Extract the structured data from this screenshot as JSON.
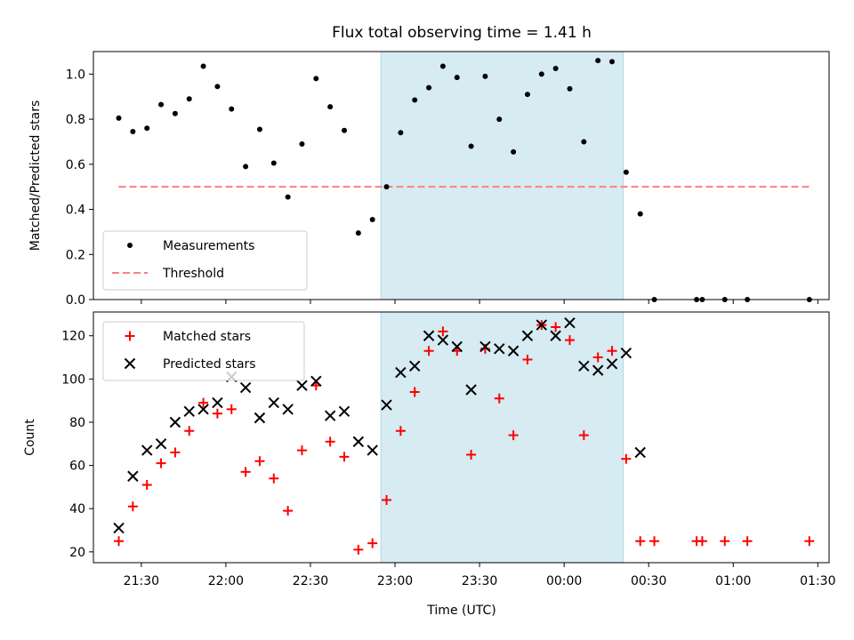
{
  "title": "Flux total observing time = 1.41 h",
  "colors": {
    "measurement": "#000000",
    "threshold": "#ff7f7f",
    "matched": "#ff0000",
    "predicted": "#000000",
    "shade": "#add8e6"
  },
  "chart_data": [
    {
      "type": "scatter",
      "ylabel": "Matched/Predicted stars",
      "ylim": [
        0,
        1.1
      ],
      "yticks": [
        "0.0",
        "0.2",
        "0.4",
        "0.6",
        "0.8",
        "1.0"
      ],
      "xlim": [
        "21:13",
        "01:34"
      ],
      "legend": {
        "placement": "lower-left",
        "entries": [
          "Measurements",
          "Threshold"
        ]
      },
      "shaded_region": [
        "22:55",
        "00:21"
      ],
      "threshold": {
        "name": "Threshold",
        "y": 0.5,
        "x_start": "21:22",
        "x_end": "01:28"
      },
      "series": [
        {
          "name": "Measurements",
          "marker": "dot",
          "points": [
            [
              "21:22",
              0.805
            ],
            [
              "21:27",
              0.745
            ],
            [
              "21:32",
              0.76
            ],
            [
              "21:37",
              0.865
            ],
            [
              "21:42",
              0.825
            ],
            [
              "21:47",
              0.89
            ],
            [
              "21:52",
              1.035
            ],
            [
              "21:57",
              0.945
            ],
            [
              "22:02",
              0.845
            ],
            [
              "22:07",
              0.59
            ],
            [
              "22:12",
              0.755
            ],
            [
              "22:17",
              0.605
            ],
            [
              "22:22",
              0.455
            ],
            [
              "22:27",
              0.69
            ],
            [
              "22:32",
              0.98
            ],
            [
              "22:37",
              0.855
            ],
            [
              "22:42",
              0.75
            ],
            [
              "22:47",
              0.295
            ],
            [
              "22:52",
              0.355
            ],
            [
              "22:57",
              0.5
            ],
            [
              "23:02",
              0.74
            ],
            [
              "23:07",
              0.885
            ],
            [
              "23:12",
              0.94
            ],
            [
              "23:17",
              1.035
            ],
            [
              "23:22",
              0.985
            ],
            [
              "23:27",
              0.68
            ],
            [
              "23:32",
              0.99
            ],
            [
              "23:37",
              0.8
            ],
            [
              "23:42",
              0.655
            ],
            [
              "23:47",
              0.91
            ],
            [
              "23:52",
              1.0
            ],
            [
              "23:57",
              1.025
            ],
            [
              "00:02",
              0.935
            ],
            [
              "00:07",
              0.7
            ],
            [
              "00:12",
              1.06
            ],
            [
              "00:17",
              1.055
            ],
            [
              "00:22",
              0.565
            ],
            [
              "00:27",
              0.38
            ],
            [
              "00:32",
              0.0
            ],
            [
              "00:47",
              0.0
            ],
            [
              "00:49",
              0.0
            ],
            [
              "00:57",
              0.0
            ],
            [
              "01:05",
              0.0
            ],
            [
              "01:27",
              0.0
            ]
          ]
        }
      ]
    },
    {
      "type": "scatter",
      "xlabel": "Time (UTC)",
      "ylabel": "Count",
      "ylim": [
        15,
        131
      ],
      "yticks": [
        "20",
        "40",
        "60",
        "80",
        "100",
        "120"
      ],
      "xlim": [
        "21:13",
        "01:34"
      ],
      "xticks": [
        "21:30",
        "22:00",
        "22:30",
        "23:00",
        "23:30",
        "00:00",
        "00:30",
        "01:00",
        "01:30"
      ],
      "legend": {
        "placement": "top-left",
        "entries": [
          "Matched stars",
          "Predicted stars"
        ]
      },
      "shaded_region": [
        "22:55",
        "00:21"
      ],
      "series": [
        {
          "name": "Matched stars",
          "marker": "plus",
          "points": [
            [
              "21:22",
              25
            ],
            [
              "21:27",
              41
            ],
            [
              "21:32",
              51
            ],
            [
              "21:37",
              61
            ],
            [
              "21:42",
              66
            ],
            [
              "21:47",
              76
            ],
            [
              "21:52",
              89
            ],
            [
              "21:57",
              84
            ],
            [
              "22:02",
              86
            ],
            [
              "22:07",
              57
            ],
            [
              "22:12",
              62
            ],
            [
              "22:17",
              54
            ],
            [
              "22:22",
              39
            ],
            [
              "22:27",
              67
            ],
            [
              "22:32",
              97
            ],
            [
              "22:37",
              71
            ],
            [
              "22:42",
              64
            ],
            [
              "22:47",
              21
            ],
            [
              "22:52",
              24
            ],
            [
              "22:57",
              44
            ],
            [
              "23:02",
              76
            ],
            [
              "23:07",
              94
            ],
            [
              "23:12",
              113
            ],
            [
              "23:17",
              122
            ],
            [
              "23:22",
              113
            ],
            [
              "23:27",
              65
            ],
            [
              "23:32",
              114
            ],
            [
              "23:37",
              91
            ],
            [
              "23:42",
              74
            ],
            [
              "23:47",
              109
            ],
            [
              "23:52",
              125
            ],
            [
              "23:57",
              124
            ],
            [
              "00:02",
              118
            ],
            [
              "00:07",
              74
            ],
            [
              "00:12",
              110
            ],
            [
              "00:17",
              113
            ],
            [
              "00:22",
              63
            ],
            [
              "00:27",
              25
            ],
            [
              "00:32",
              25
            ],
            [
              "00:47",
              25
            ],
            [
              "00:49",
              25
            ],
            [
              "00:57",
              25
            ],
            [
              "01:05",
              25
            ],
            [
              "01:27",
              25
            ]
          ]
        },
        {
          "name": "Predicted stars",
          "marker": "x",
          "points": [
            [
              "21:22",
              31
            ],
            [
              "21:27",
              55
            ],
            [
              "21:32",
              67
            ],
            [
              "21:37",
              70
            ],
            [
              "21:42",
              80
            ],
            [
              "21:47",
              85
            ],
            [
              "21:52",
              86
            ],
            [
              "21:57",
              89
            ],
            [
              "22:02",
              101
            ],
            [
              "22:07",
              96
            ],
            [
              "22:12",
              82
            ],
            [
              "22:17",
              89
            ],
            [
              "22:22",
              86
            ],
            [
              "22:27",
              97
            ],
            [
              "22:32",
              99
            ],
            [
              "22:37",
              83
            ],
            [
              "22:42",
              85
            ],
            [
              "22:47",
              71
            ],
            [
              "22:52",
              67
            ],
            [
              "22:57",
              88
            ],
            [
              "23:02",
              103
            ],
            [
              "23:07",
              106
            ],
            [
              "23:12",
              120
            ],
            [
              "23:17",
              118
            ],
            [
              "23:22",
              115
            ],
            [
              "23:27",
              95
            ],
            [
              "23:32",
              115
            ],
            [
              "23:37",
              114
            ],
            [
              "23:42",
              113
            ],
            [
              "23:47",
              120
            ],
            [
              "23:52",
              125
            ],
            [
              "23:57",
              120
            ],
            [
              "00:02",
              126
            ],
            [
              "00:07",
              106
            ],
            [
              "00:12",
              104
            ],
            [
              "00:17",
              107
            ],
            [
              "00:22",
              112
            ],
            [
              "00:27",
              66
            ]
          ]
        }
      ]
    }
  ]
}
